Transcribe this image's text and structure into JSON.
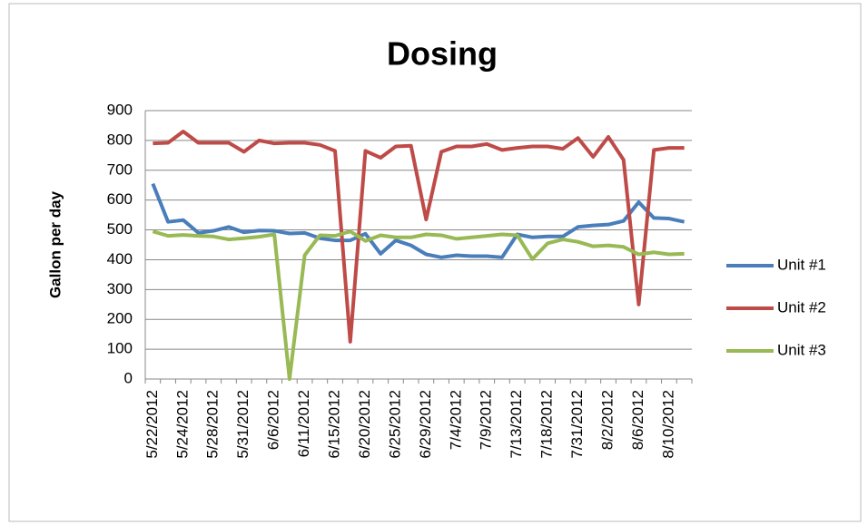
{
  "chart_data": {
    "type": "line",
    "title": "Dosing",
    "y_label": "Gallon per day",
    "categories": [
      "5/22/2012",
      null,
      "5/24/2012",
      null,
      "5/28/2012",
      null,
      "5/31/2012",
      null,
      "6/6/2012",
      null,
      "6/11/2012",
      null,
      "6/15/2012",
      null,
      "6/20/2012",
      null,
      "6/25/2012",
      null,
      "6/29/2012",
      null,
      "7/4/2012",
      null,
      "7/9/2012",
      null,
      "7/13/2012",
      null,
      "7/18/2012",
      null,
      "7/31/2012",
      null,
      "8/2/2012",
      null,
      "8/6/2012",
      null,
      "8/10/2012",
      null
    ],
    "series": [
      {
        "name": "Unit #1",
        "color": "#4a7ebb",
        "values": [
          655,
          527,
          533,
          490,
          497,
          510,
          492,
          498,
          497,
          488,
          490,
          472,
          465,
          465,
          487,
          420,
          465,
          448,
          418,
          408,
          415,
          412,
          412,
          408,
          485,
          475,
          478,
          478,
          510,
          515,
          518,
          530,
          593,
          540,
          538,
          527
        ]
      },
      {
        "name": "Unit #2",
        "color": "#be4b48",
        "values": [
          790,
          792,
          830,
          792,
          792,
          792,
          762,
          800,
          790,
          792,
          792,
          785,
          765,
          125,
          765,
          742,
          780,
          782,
          535,
          762,
          780,
          780,
          788,
          768,
          775,
          780,
          780,
          772,
          808,
          745,
          812,
          735,
          250,
          768,
          775,
          775
        ]
      },
      {
        "name": "Unit #3",
        "color": "#98b954",
        "values": [
          495,
          480,
          483,
          480,
          478,
          468,
          472,
          477,
          485,
          0,
          415,
          482,
          480,
          495,
          463,
          482,
          475,
          475,
          485,
          482,
          470,
          475,
          480,
          485,
          482,
          402,
          455,
          468,
          460,
          445,
          448,
          443,
          418,
          425,
          418,
          420
        ]
      }
    ],
    "ylim": [
      0,
      900
    ],
    "yticks": [
      0,
      100,
      200,
      300,
      400,
      500,
      600,
      700,
      800,
      900
    ],
    "grid": true,
    "legend": "right"
  }
}
